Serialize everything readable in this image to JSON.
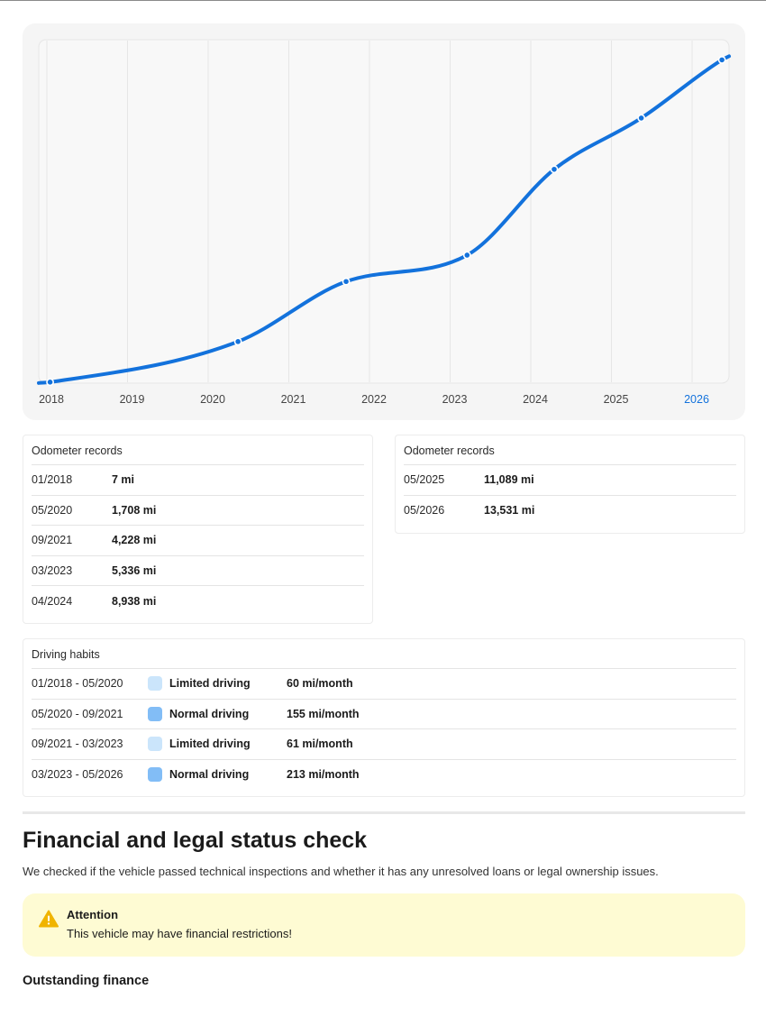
{
  "chart_data": {
    "type": "line",
    "x_ticks": [
      "2018",
      "2019",
      "2020",
      "2021",
      "2022",
      "2023",
      "2024",
      "2025",
      "2026"
    ],
    "highlighted_tick": "2026",
    "points": [
      {
        "date": "01/2018",
        "year": 2018.04,
        "miles": 7
      },
      {
        "date": "05/2020",
        "year": 2020.37,
        "miles": 1708
      },
      {
        "date": "09/2021",
        "year": 2021.71,
        "miles": 4228
      },
      {
        "date": "03/2023",
        "year": 2023.21,
        "miles": 5336
      },
      {
        "date": "04/2024",
        "year": 2024.29,
        "miles": 8938
      },
      {
        "date": "05/2025",
        "year": 2025.37,
        "miles": 11089
      },
      {
        "date": "05/2026",
        "year": 2026.37,
        "miles": 13531
      }
    ],
    "xlim": [
      2017.9,
      2026.45
    ],
    "ylim": [
      0,
      14000
    ],
    "grid": "vertical",
    "line_color": "#1372dc"
  },
  "records_left": {
    "title": "Odometer records",
    "rows": [
      {
        "date": "01/2018",
        "value": "7 mi"
      },
      {
        "date": "05/2020",
        "value": "1,708 mi"
      },
      {
        "date": "09/2021",
        "value": "4,228 mi"
      },
      {
        "date": "03/2023",
        "value": "5,336 mi"
      },
      {
        "date": "04/2024",
        "value": "8,938 mi"
      }
    ]
  },
  "records_right": {
    "title": "Odometer records",
    "rows": [
      {
        "date": "05/2025",
        "value": "11,089 mi"
      },
      {
        "date": "05/2026",
        "value": "13,531 mi"
      }
    ]
  },
  "habits": {
    "title": "Driving habits",
    "rows": [
      {
        "period": "01/2018 - 05/2020",
        "kind": "Limited driving",
        "rate": "60 mi/month",
        "color": "#cbe5fb"
      },
      {
        "period": "05/2020 - 09/2021",
        "kind": "Normal driving",
        "rate": "155 mi/month",
        "color": "#82bdf6"
      },
      {
        "period": "09/2021 - 03/2023",
        "kind": "Limited driving",
        "rate": "61 mi/month",
        "color": "#cbe5fb"
      },
      {
        "period": "03/2023 - 05/2026",
        "kind": "Normal driving",
        "rate": "213 mi/month",
        "color": "#82bdf6"
      }
    ]
  },
  "status": {
    "title": "Financial and legal status check",
    "subtitle": "We checked if the vehicle passed technical inspections and whether it has any unresolved loans or legal ownership issues."
  },
  "alert": {
    "icon": "warning-icon",
    "title": "Attention",
    "message": "This vehicle may have financial restrictions!",
    "icon_color": "#f0b400"
  },
  "outstanding": {
    "title": "Outstanding finance"
  }
}
